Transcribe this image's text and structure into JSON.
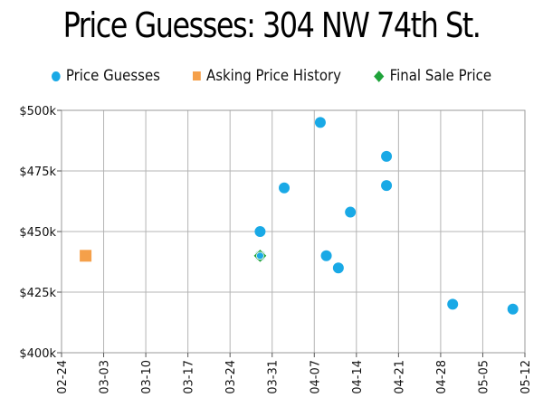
{
  "chart_data": {
    "type": "scatter",
    "title": "Price Guesses: 304 NW 74th St.",
    "xlabel": "",
    "ylabel": "",
    "legend_position": "top",
    "grid": true,
    "x_axis": {
      "type": "date",
      "range": [
        "02-24",
        "05-12"
      ],
      "tick_labels": [
        "02-24",
        "03-03",
        "03-10",
        "03-17",
        "03-24",
        "03-31",
        "04-07",
        "04-14",
        "04-21",
        "04-28",
        "05-05",
        "05-12"
      ]
    },
    "y_axis": {
      "range": [
        400,
        500
      ],
      "unit": "k",
      "tick_values": [
        400,
        425,
        450,
        475,
        500
      ],
      "tick_labels": [
        "$400k",
        "$425k",
        "$450k",
        "$475k",
        "$500k"
      ]
    },
    "series": [
      {
        "name": "Price Guesses",
        "marker": "circle",
        "color": "#19a9e6",
        "points": [
          {
            "x": "03-29",
            "y": 450
          },
          {
            "x": "03-29",
            "y": 440
          },
          {
            "x": "04-02",
            "y": 468
          },
          {
            "x": "04-08",
            "y": 495
          },
          {
            "x": "04-09",
            "y": 440
          },
          {
            "x": "04-11",
            "y": 435
          },
          {
            "x": "04-13",
            "y": 458
          },
          {
            "x": "04-19",
            "y": 481
          },
          {
            "x": "04-19",
            "y": 469
          },
          {
            "x": "04-30",
            "y": 420
          },
          {
            "x": "05-10",
            "y": 418
          }
        ]
      },
      {
        "name": "Asking Price History",
        "marker": "square",
        "color": "#f5a04a",
        "points": [
          {
            "x": "02-28",
            "y": 440
          }
        ]
      },
      {
        "name": "Final Sale Price",
        "marker": "diamond",
        "color": "#1fa33a",
        "points": [
          {
            "x": "03-29",
            "y": 440
          }
        ]
      }
    ]
  }
}
